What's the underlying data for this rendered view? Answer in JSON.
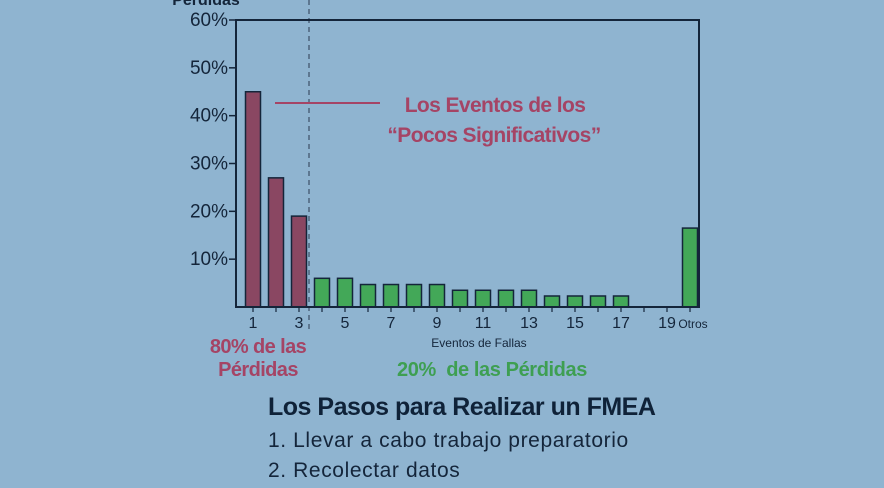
{
  "chart_data": {
    "type": "bar",
    "top_label": "Pérdidas",
    "xlabel": "Eventos de Fallas",
    "ylabel": "",
    "ylim": [
      0,
      60
    ],
    "y_ticks": [
      {
        "value": 10,
        "label": "10%"
      },
      {
        "value": 20,
        "label": "20%"
      },
      {
        "value": 30,
        "label": "30%"
      },
      {
        "value": 40,
        "label": "40%"
      },
      {
        "value": 50,
        "label": "50%"
      },
      {
        "value": 60,
        "label": "60%"
      }
    ],
    "categories": [
      "1",
      "2",
      "3",
      "4",
      "5",
      "6",
      "7",
      "8",
      "9",
      "10",
      "11",
      "12",
      "13",
      "14",
      "15",
      "16",
      "17",
      "18",
      "19",
      "Otros"
    ],
    "x_tick_labels": [
      "1",
      "3",
      "5",
      "7",
      "9",
      "11",
      "13",
      "15",
      "17",
      "19",
      "Otros"
    ],
    "values": [
      45,
      27,
      19,
      6,
      6,
      4.7,
      4.7,
      4.7,
      4.7,
      3.5,
      3.5,
      3.5,
      3.5,
      2.3,
      2.3,
      2.3,
      2.3,
      0,
      0,
      16.5
    ],
    "vital_few_count": 3,
    "colors": {
      "vital_few": "#8a4762",
      "trivial_many": "#43a858",
      "annotation": "#a54465",
      "axis": "#14253a"
    },
    "annotation": {
      "line1": "Los Eventos de los",
      "line2": "“Pocos Significativos”"
    },
    "group_labels": {
      "vital_few_line1": "80% de las",
      "vital_few_line2": "Pérdidas",
      "trivial_many": "20%  de las Pérdidas"
    },
    "grid": false
  },
  "steps": {
    "title": "Los Pasos para Realizar un FMEA",
    "items": [
      "1. Llevar a cabo trabajo preparatorio",
      "2. Recolectar datos"
    ]
  }
}
